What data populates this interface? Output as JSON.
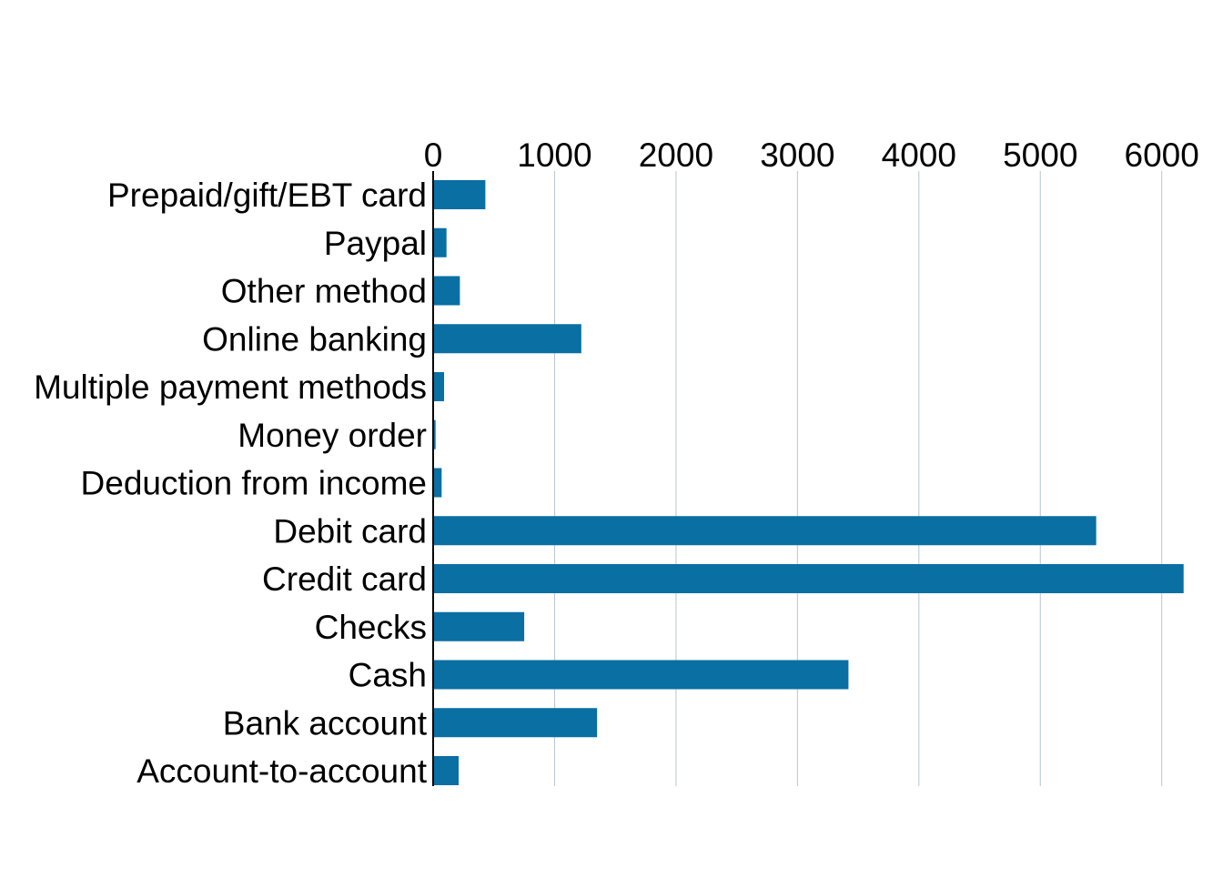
{
  "chart_data": {
    "type": "bar",
    "orientation": "horizontal",
    "title": "",
    "xlabel": "",
    "ylabel": "",
    "xlim": [
      0,
      6200
    ],
    "x_ticks": [
      0,
      1000,
      2000,
      3000,
      4000,
      5000,
      6000
    ],
    "x_tick_labels": [
      "0",
      "1000",
      "2000",
      "3000",
      "4000",
      "5000",
      "6000"
    ],
    "x_axis_position": "top",
    "grid": "vertical",
    "legend": "none",
    "categories": [
      "Prepaid/gift/EBT card",
      "Paypal",
      "Other method",
      "Online banking",
      "Multiple payment methods",
      "Money order",
      "Deduction from income",
      "Debit card",
      "Credit card",
      "Checks",
      "Cash",
      "Bank account",
      "Account-to-account"
    ],
    "values": [
      430,
      110,
      220,
      1220,
      90,
      20,
      70,
      5460,
      6180,
      750,
      3420,
      1350,
      210
    ],
    "colors": {
      "bar": "#0a6fa2",
      "grid": "#b8c6d2",
      "axis": "#000000"
    }
  }
}
